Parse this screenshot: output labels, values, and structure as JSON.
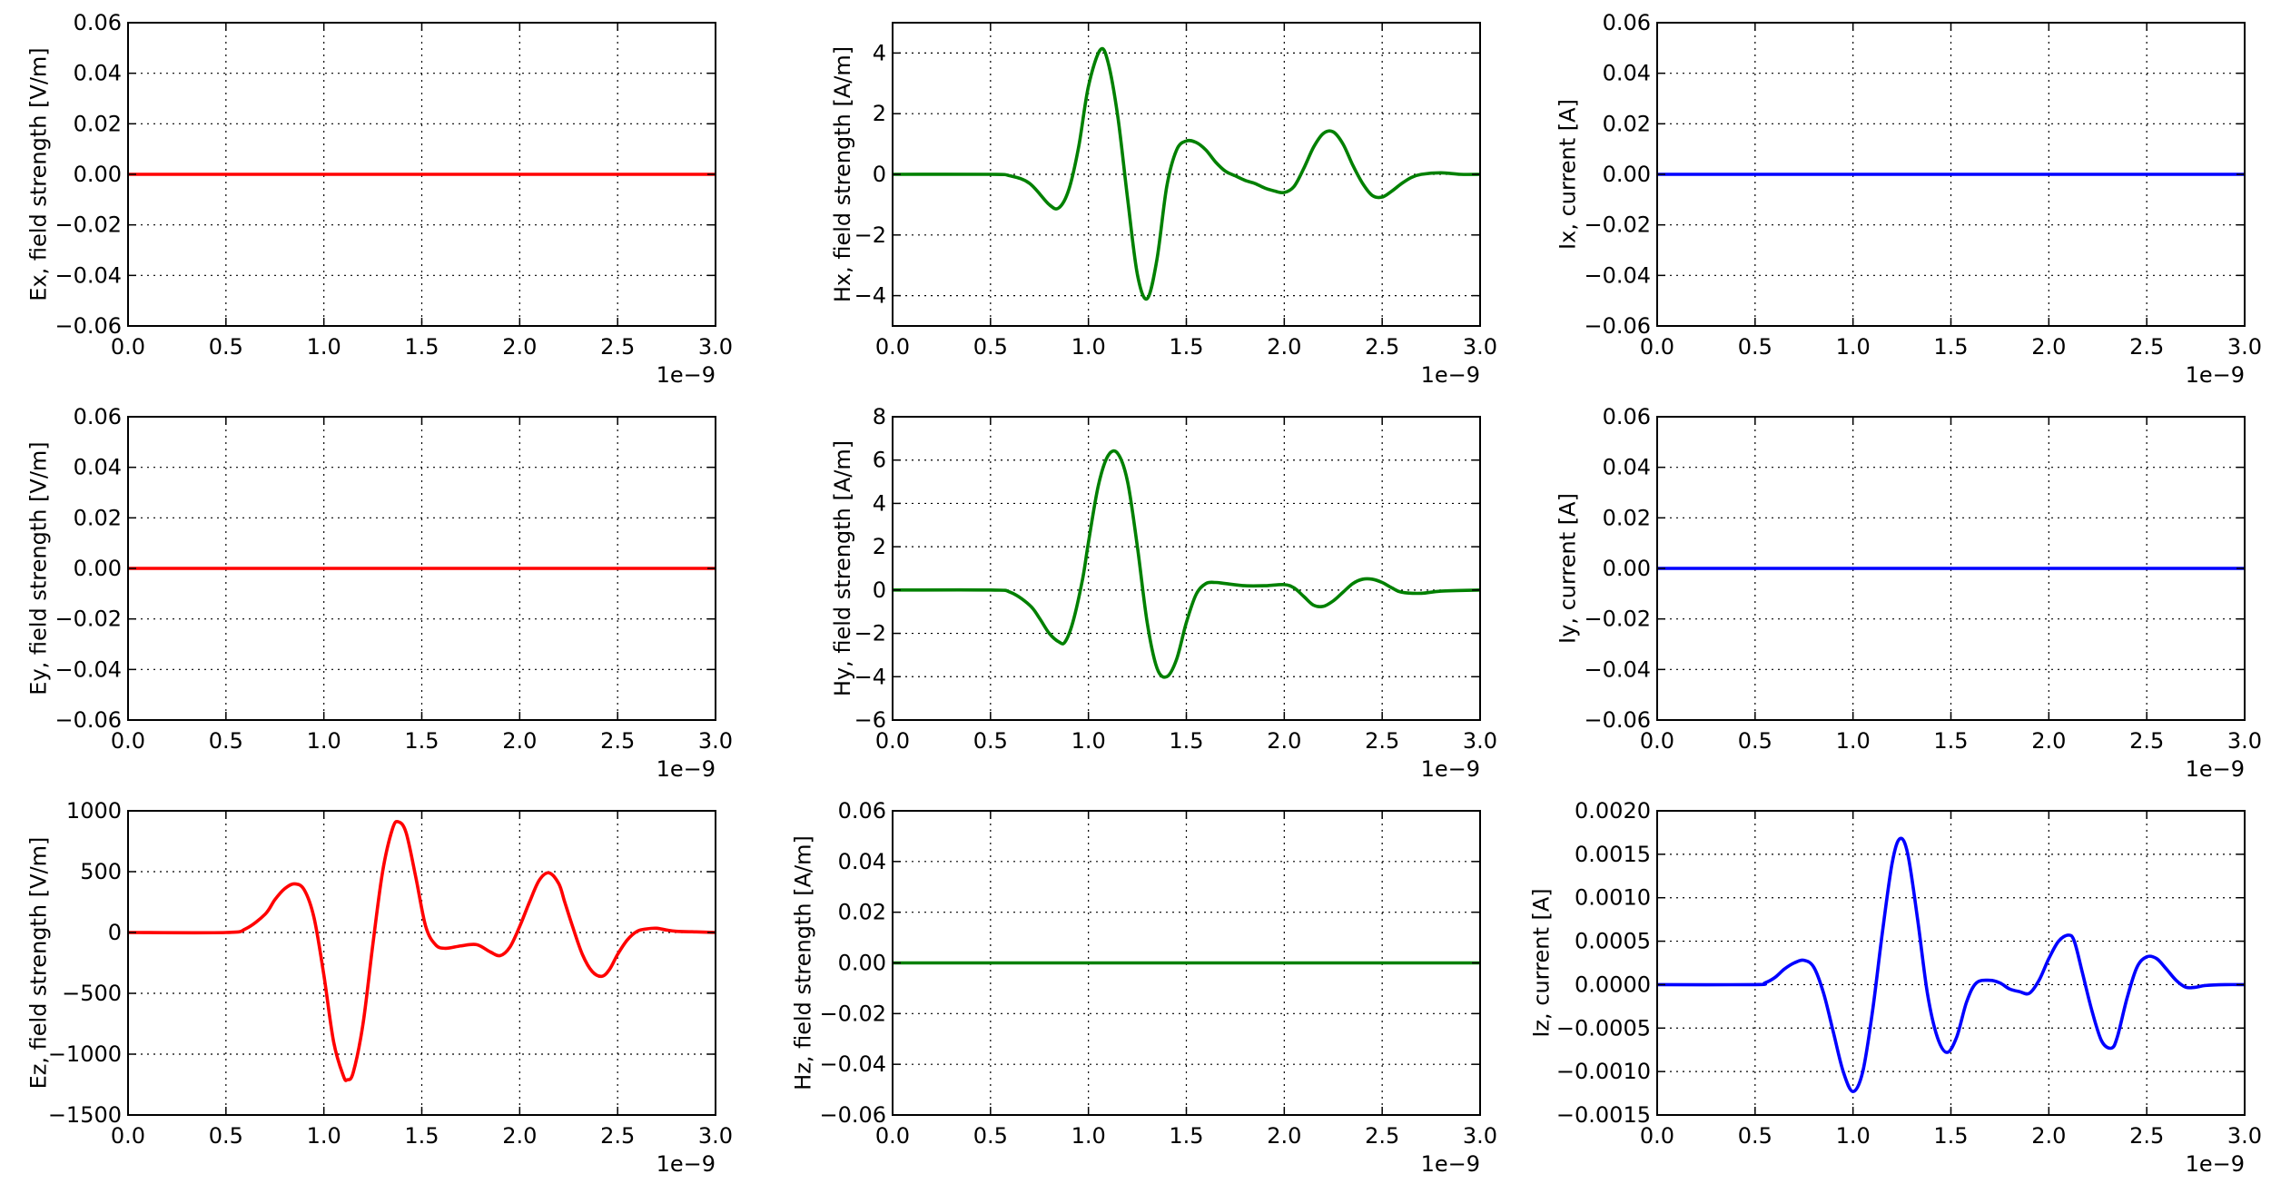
{
  "figure": {
    "offset_label": "1e−9"
  },
  "chart_data": [
    {
      "type": "line",
      "id": "ex",
      "ylabel": "Ex, field strength [V/m]",
      "color": "#ff0000",
      "xlim": [
        0.0,
        3.0
      ],
      "ylim": [
        -0.06,
        0.06
      ],
      "xticks": [
        "0.0",
        "0.5",
        "1.0",
        "1.5",
        "2.0",
        "2.5",
        "3.0"
      ],
      "yticks": [
        "−0.06",
        "−0.04",
        "−0.02",
        "0.00",
        "0.02",
        "0.04",
        "0.06"
      ],
      "ytick_values": [
        -0.06,
        -0.04,
        -0.02,
        0.0,
        0.02,
        0.04,
        0.06
      ],
      "grid": true,
      "x_offset": "1e−9",
      "series": [
        {
          "x": [
            0.0,
            3.0
          ],
          "y": [
            0,
            0
          ]
        }
      ]
    },
    {
      "type": "line",
      "id": "hx",
      "ylabel": "Hx, field strength [A/m]",
      "color": "#008000",
      "xlim": [
        0.0,
        3.0
      ],
      "ylim": [
        -5,
        5
      ],
      "xticks": [
        "0.0",
        "0.5",
        "1.0",
        "1.5",
        "2.0",
        "2.5",
        "3.0"
      ],
      "yticks": [
        "−4",
        "−2",
        "0",
        "2",
        "4"
      ],
      "ytick_values": [
        -4,
        -2,
        0,
        2,
        4
      ],
      "grid": true,
      "x_offset": "1e−9",
      "series": [
        {
          "x": [
            0.0,
            0.5,
            0.6,
            0.7,
            0.8,
            0.85,
            0.9,
            0.95,
            1.0,
            1.06,
            1.1,
            1.15,
            1.2,
            1.25,
            1.3,
            1.35,
            1.4,
            1.45,
            1.5,
            1.55,
            1.6,
            1.65,
            1.7,
            1.75,
            1.8,
            1.85,
            1.9,
            1.95,
            2.0,
            2.05,
            2.1,
            2.15,
            2.2,
            2.25,
            2.3,
            2.35,
            2.4,
            2.45,
            2.5,
            2.55,
            2.6,
            2.65,
            2.7,
            2.8,
            2.9,
            3.0
          ],
          "y": [
            0,
            0,
            -0.05,
            -0.3,
            -1.0,
            -1.1,
            -0.5,
            0.9,
            2.9,
            4.1,
            3.7,
            1.9,
            -0.8,
            -3.3,
            -4.1,
            -2.8,
            -0.4,
            0.8,
            1.1,
            1.05,
            0.8,
            0.4,
            0.1,
            -0.05,
            -0.2,
            -0.3,
            -0.45,
            -0.55,
            -0.6,
            -0.4,
            0.2,
            0.9,
            1.35,
            1.4,
            1.0,
            0.3,
            -0.3,
            -0.7,
            -0.75,
            -0.55,
            -0.3,
            -0.1,
            0,
            0.05,
            0,
            0
          ]
        }
      ]
    },
    {
      "type": "line",
      "id": "ix",
      "ylabel": "Ix, current [A]",
      "color": "#0000ff",
      "xlim": [
        0.0,
        3.0
      ],
      "ylim": [
        -0.06,
        0.06
      ],
      "xticks": [
        "0.0",
        "0.5",
        "1.0",
        "1.5",
        "2.0",
        "2.5",
        "3.0"
      ],
      "yticks": [
        "−0.06",
        "−0.04",
        "−0.02",
        "0.00",
        "0.02",
        "0.04",
        "0.06"
      ],
      "ytick_values": [
        -0.06,
        -0.04,
        -0.02,
        0.0,
        0.02,
        0.04,
        0.06
      ],
      "grid": true,
      "x_offset": "1e−9",
      "series": [
        {
          "x": [
            0.0,
            3.0
          ],
          "y": [
            0,
            0
          ]
        }
      ]
    },
    {
      "type": "line",
      "id": "ey",
      "ylabel": "Ey, field strength [V/m]",
      "color": "#ff0000",
      "xlim": [
        0.0,
        3.0
      ],
      "ylim": [
        -0.06,
        0.06
      ],
      "xticks": [
        "0.0",
        "0.5",
        "1.0",
        "1.5",
        "2.0",
        "2.5",
        "3.0"
      ],
      "yticks": [
        "−0.06",
        "−0.04",
        "−0.02",
        "0.00",
        "0.02",
        "0.04",
        "0.06"
      ],
      "ytick_values": [
        -0.06,
        -0.04,
        -0.02,
        0.0,
        0.02,
        0.04,
        0.06
      ],
      "grid": true,
      "x_offset": "1e−9",
      "series": [
        {
          "x": [
            0.0,
            3.0
          ],
          "y": [
            0,
            0
          ]
        }
      ]
    },
    {
      "type": "line",
      "id": "hy",
      "ylabel": "Hy, field strength [A/m]",
      "color": "#008000",
      "xlim": [
        0.0,
        3.0
      ],
      "ylim": [
        -6,
        8
      ],
      "xticks": [
        "0.0",
        "0.5",
        "1.0",
        "1.5",
        "2.0",
        "2.5",
        "3.0"
      ],
      "yticks": [
        "−6",
        "−4",
        "−2",
        "0",
        "2",
        "4",
        "6",
        "8"
      ],
      "ytick_values": [
        -6,
        -4,
        -2,
        0,
        2,
        4,
        6,
        8
      ],
      "grid": true,
      "x_offset": "1e−9",
      "series": [
        {
          "x": [
            0.0,
            0.5,
            0.6,
            0.7,
            0.75,
            0.8,
            0.85,
            0.88,
            0.92,
            0.97,
            1.0,
            1.05,
            1.1,
            1.15,
            1.2,
            1.25,
            1.3,
            1.35,
            1.4,
            1.45,
            1.5,
            1.55,
            1.6,
            1.65,
            1.7,
            1.8,
            1.9,
            2.0,
            2.05,
            2.1,
            2.15,
            2.2,
            2.25,
            2.3,
            2.35,
            2.4,
            2.45,
            2.5,
            2.55,
            2.6,
            2.7,
            2.8,
            3.0
          ],
          "y": [
            0,
            0,
            -0.1,
            -0.7,
            -1.3,
            -2.0,
            -2.4,
            -2.4,
            -1.5,
            0.5,
            2.2,
            4.8,
            6.2,
            6.3,
            5.0,
            2.0,
            -1.5,
            -3.6,
            -4.0,
            -3.2,
            -1.5,
            -0.2,
            0.3,
            0.35,
            0.3,
            0.2,
            0.2,
            0.25,
            0.1,
            -0.3,
            -0.7,
            -0.75,
            -0.5,
            -0.1,
            0.3,
            0.5,
            0.5,
            0.35,
            0.1,
            -0.1,
            -0.15,
            -0.05,
            0
          ]
        }
      ]
    },
    {
      "type": "line",
      "id": "iy",
      "ylabel": "Iy, current [A]",
      "color": "#0000ff",
      "xlim": [
        0.0,
        3.0
      ],
      "ylim": [
        -0.06,
        0.06
      ],
      "xticks": [
        "0.0",
        "0.5",
        "1.0",
        "1.5",
        "2.0",
        "2.5",
        "3.0"
      ],
      "yticks": [
        "−0.06",
        "−0.04",
        "−0.02",
        "0.00",
        "0.02",
        "0.04",
        "0.06"
      ],
      "ytick_values": [
        -0.06,
        -0.04,
        -0.02,
        0.0,
        0.02,
        0.04,
        0.06
      ],
      "grid": true,
      "x_offset": "1e−9",
      "series": [
        {
          "x": [
            0.0,
            3.0
          ],
          "y": [
            0,
            0
          ]
        }
      ]
    },
    {
      "type": "line",
      "id": "ez",
      "ylabel": "Ez, field strength [V/m]",
      "color": "#ff0000",
      "xlim": [
        0.0,
        3.0
      ],
      "ylim": [
        -1500,
        1000
      ],
      "xticks": [
        "0.0",
        "0.5",
        "1.0",
        "1.5",
        "2.0",
        "2.5",
        "3.0"
      ],
      "yticks": [
        "−1500",
        "−1000",
        "−500",
        "0",
        "500",
        "1000"
      ],
      "ytick_values": [
        -1500,
        -1000,
        -500,
        0,
        500,
        1000
      ],
      "grid": true,
      "x_offset": "1e−9",
      "series": [
        {
          "x": [
            0.0,
            0.5,
            0.6,
            0.7,
            0.75,
            0.8,
            0.85,
            0.9,
            0.95,
            1.0,
            1.05,
            1.1,
            1.12,
            1.15,
            1.2,
            1.25,
            1.3,
            1.35,
            1.38,
            1.42,
            1.47,
            1.52,
            1.57,
            1.62,
            1.7,
            1.78,
            1.85,
            1.9,
            1.95,
            2.0,
            2.05,
            2.1,
            2.15,
            2.2,
            2.23,
            2.27,
            2.32,
            2.37,
            2.42,
            2.46,
            2.5,
            2.55,
            2.6,
            2.65,
            2.7,
            2.75,
            2.8,
            2.9,
            3.0
          ],
          "y": [
            0,
            0,
            30,
            150,
            270,
            360,
            400,
            350,
            120,
            -350,
            -900,
            -1180,
            -1210,
            -1150,
            -750,
            -100,
            500,
            850,
            910,
            820,
            450,
            50,
            -100,
            -130,
            -110,
            -100,
            -160,
            -190,
            -120,
            50,
            250,
            430,
            490,
            400,
            250,
            50,
            -180,
            -320,
            -360,
            -300,
            -180,
            -60,
            10,
            30,
            35,
            20,
            10,
            5,
            0
          ]
        }
      ]
    },
    {
      "type": "line",
      "id": "hz",
      "ylabel": "Hz, field strength [A/m]",
      "color": "#008000",
      "xlim": [
        0.0,
        3.0
      ],
      "ylim": [
        -0.06,
        0.06
      ],
      "xticks": [
        "0.0",
        "0.5",
        "1.0",
        "1.5",
        "2.0",
        "2.5",
        "3.0"
      ],
      "yticks": [
        "−0.06",
        "−0.04",
        "−0.02",
        "0.00",
        "0.02",
        "0.04",
        "0.06"
      ],
      "ytick_values": [
        -0.06,
        -0.04,
        -0.02,
        0.0,
        0.02,
        0.04,
        0.06
      ],
      "grid": true,
      "x_offset": "1e−9",
      "series": [
        {
          "x": [
            0.0,
            3.0
          ],
          "y": [
            0,
            0
          ]
        }
      ]
    },
    {
      "type": "line",
      "id": "iz",
      "ylabel": "Iz, current [A]",
      "color": "#0000ff",
      "xlim": [
        0.0,
        3.0
      ],
      "ylim": [
        -0.0015,
        0.002
      ],
      "xticks": [
        "0.0",
        "0.5",
        "1.0",
        "1.5",
        "2.0",
        "2.5",
        "3.0"
      ],
      "yticks": [
        "−0.0015",
        "−0.0010",
        "−0.0005",
        "0.0000",
        "0.0005",
        "0.0010",
        "0.0015",
        "0.0020"
      ],
      "ytick_values": [
        -0.0015,
        -0.001,
        -0.0005,
        0.0,
        0.0005,
        0.001,
        0.0015,
        0.002
      ],
      "grid": true,
      "x_offset": "1e−9",
      "series": [
        {
          "x": [
            0.0,
            0.5,
            0.55,
            0.6,
            0.65,
            0.7,
            0.75,
            0.8,
            0.85,
            0.9,
            0.95,
            1.0,
            1.05,
            1.1,
            1.15,
            1.2,
            1.24,
            1.28,
            1.33,
            1.38,
            1.43,
            1.48,
            1.53,
            1.58,
            1.63,
            1.7,
            1.75,
            1.8,
            1.85,
            1.9,
            1.95,
            2.0,
            2.05,
            2.1,
            2.13,
            2.17,
            2.22,
            2.27,
            2.32,
            2.35,
            2.4,
            2.45,
            2.5,
            2.55,
            2.6,
            2.65,
            2.7,
            2.75,
            2.8,
            2.9,
            3.0
          ],
          "y": [
            0,
            0,
            2e-05,
            8e-05,
            0.00018,
            0.00025,
            0.00028,
            0.0002,
            -0.0001,
            -0.00055,
            -0.001,
            -0.00123,
            -0.001,
            -0.0003,
            0.0006,
            0.0014,
            0.00168,
            0.0015,
            0.00075,
            -0.0001,
            -0.0006,
            -0.00078,
            -0.0006,
            -0.0002,
            2e-05,
            5e-05,
            2e-05,
            -5e-05,
            -8e-05,
            -0.0001,
            5e-05,
            0.0003,
            0.0005,
            0.00057,
            0.0005,
            0.00015,
            -0.0003,
            -0.00065,
            -0.00073,
            -0.0006,
            -0.00015,
            0.0002,
            0.00032,
            0.0003,
            0.00018,
            5e-05,
            -3e-05,
            -3e-05,
            -1e-05,
            0,
            0
          ]
        }
      ]
    }
  ]
}
